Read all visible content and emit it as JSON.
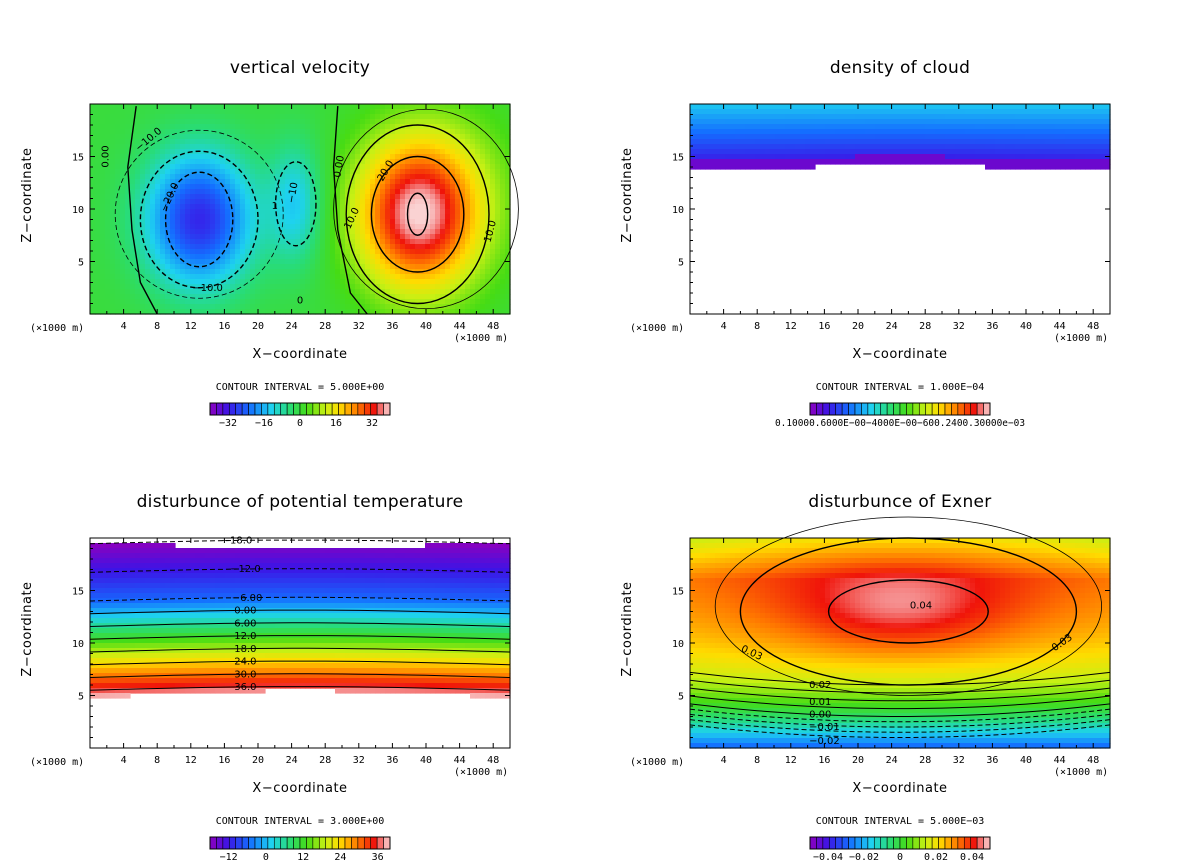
{
  "panels": [
    {
      "id": "w",
      "title": "vertical velocity",
      "xlabel": "X−coordinate",
      "ylabel": "Z−coordinate",
      "unit_left": "(×1000 m)",
      "unit_right": "(×1000 m)",
      "contour_interval": "CONTOUR INTERVAL = 5.000E+00",
      "colorbar_ticks": [
        "−32",
        "−16",
        "0",
        "16",
        "32"
      ],
      "contour_labels": [
        "0.00",
        "−10.0",
        "−20.0",
        "−10.0",
        "−10",
        "1",
        "0.00",
        "20.0",
        "10.0",
        "10.0",
        "0"
      ]
    },
    {
      "id": "qc",
      "title": "density of cloud",
      "xlabel": "X−coordinate",
      "ylabel": "Z−coordinate",
      "unit_left": "(×1000 m)",
      "unit_right": "(×1000 m)",
      "contour_interval": "CONTOUR INTERVAL = 1.000E−04",
      "colorbar_ticks": [
        "0.10000.6000E−00−4000E−00−600.2400.30000e−03"
      ],
      "contour_labels": []
    },
    {
      "id": "th",
      "title": "disturbunce of potential temperature",
      "xlabel": "X−coordinate",
      "ylabel": "Z−coordinate",
      "unit_left": "(×1000 m)",
      "unit_right": "(×1000 m)",
      "contour_interval": "CONTOUR INTERVAL = 3.000E+00",
      "colorbar_ticks": [
        "−12",
        "0",
        "12",
        "24",
        "36"
      ],
      "contour_labels": [
        "−18.0",
        "−12.0",
        "−6.00",
        "0.00",
        "6.00",
        "12.0",
        "18.0",
        "24.0",
        "30.0",
        "36.0"
      ]
    },
    {
      "id": "ex",
      "title": "disturbunce of Exner",
      "xlabel": "X−coordinate",
      "ylabel": "Z−coordinate",
      "unit_left": "(×1000 m)",
      "unit_right": "(×1000 m)",
      "contour_interval": "CONTOUR INTERVAL = 5.000E−03",
      "colorbar_ticks": [
        "−0.04",
        "−0.02",
        "0",
        "0.02",
        "0.04"
      ],
      "contour_labels": [
        "0.04",
        "0.03",
        "0.03",
        "0.02",
        "0.01",
        "0.00",
        "−0.01",
        "−0.02"
      ]
    }
  ],
  "chart_data": [
    {
      "type": "heatmap",
      "title": "vertical velocity",
      "xlabel": "X−coordinate",
      "ylabel": "Z−coordinate",
      "x_ticks": [
        "4",
        "8",
        "12",
        "16",
        "20",
        "24",
        "28",
        "32",
        "36",
        "40",
        "44",
        "48"
      ],
      "y_ticks": [
        "5",
        "10",
        "15"
      ],
      "xlim": [
        0,
        50
      ],
      "ylim": [
        0,
        20
      ],
      "contour_interval": 5.0,
      "colorbar_range": [
        -40,
        40
      ],
      "colorbar_ticks": [
        -32,
        -16,
        0,
        16,
        32
      ],
      "features": [
        {
          "kind": "min",
          "x": 13,
          "z": 9,
          "value": -30
        },
        {
          "kind": "min",
          "x": 24.5,
          "z": 10.5,
          "value": -12
        },
        {
          "kind": "max",
          "x": 39,
          "z": 9.5,
          "value": 38
        }
      ]
    },
    {
      "type": "heatmap",
      "title": "density of cloud",
      "xlabel": "X−coordinate",
      "ylabel": "Z−coordinate",
      "x_ticks": [
        "4",
        "8",
        "12",
        "16",
        "20",
        "24",
        "28",
        "32",
        "36",
        "40",
        "44",
        "48"
      ],
      "y_ticks": [
        "5",
        "10",
        "15"
      ],
      "xlim": [
        0,
        50
      ],
      "ylim": [
        0,
        20
      ],
      "contour_interval": 0.0001,
      "cloud_base_z": 14
    },
    {
      "type": "heatmap",
      "title": "disturbunce of potential temperature",
      "xlabel": "X−coordinate",
      "ylabel": "Z−coordinate",
      "x_ticks": [
        "4",
        "8",
        "12",
        "16",
        "20",
        "24",
        "28",
        "32",
        "36",
        "40",
        "44",
        "48"
      ],
      "y_ticks": [
        "5",
        "10",
        "15"
      ],
      "xlim": [
        0,
        50
      ],
      "ylim": [
        0,
        20
      ],
      "contour_interval": 3.0,
      "colorbar_range": [
        -18,
        40
      ],
      "colorbar_ticks": [
        -12,
        0,
        12,
        24,
        36
      ],
      "contour_levels": [
        -18,
        -12,
        -6,
        0,
        6,
        12,
        18,
        24,
        30,
        36
      ]
    },
    {
      "type": "heatmap",
      "title": "disturbunce of Exner",
      "xlabel": "X−coordinate",
      "ylabel": "Z−coordinate",
      "x_ticks": [
        "4",
        "8",
        "12",
        "16",
        "20",
        "24",
        "28",
        "32",
        "36",
        "40",
        "44",
        "48"
      ],
      "y_ticks": [
        "5",
        "10",
        "15"
      ],
      "xlim": [
        0,
        50
      ],
      "ylim": [
        0,
        20
      ],
      "contour_interval": 0.005,
      "colorbar_range": [
        -0.05,
        0.05
      ],
      "colorbar_ticks": [
        -0.04,
        -0.02,
        0,
        0.02,
        0.04
      ],
      "contour_levels": [
        -0.02,
        -0.01,
        0.0,
        0.01,
        0.02,
        0.03,
        0.04
      ],
      "features": [
        {
          "kind": "max",
          "x": 25,
          "z": 13,
          "value": 0.045
        }
      ]
    }
  ]
}
